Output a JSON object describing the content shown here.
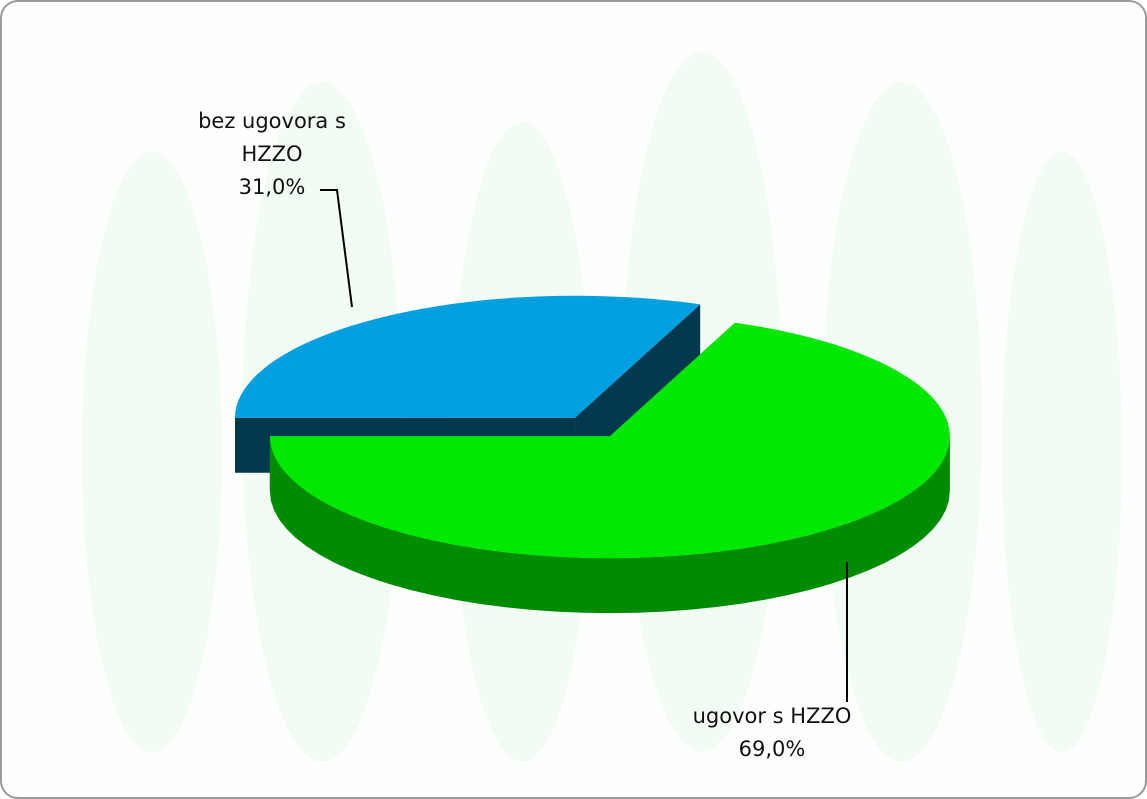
{
  "chart_data": {
    "type": "pie",
    "categories": [
      "bez ugovora s HZZO",
      "ugovor s HZZO"
    ],
    "values": [
      31.0,
      69.0
    ],
    "value_labels": [
      "31,0%",
      "69,0%"
    ],
    "colors": [
      "#00a0e0",
      "#00e800"
    ]
  }
}
